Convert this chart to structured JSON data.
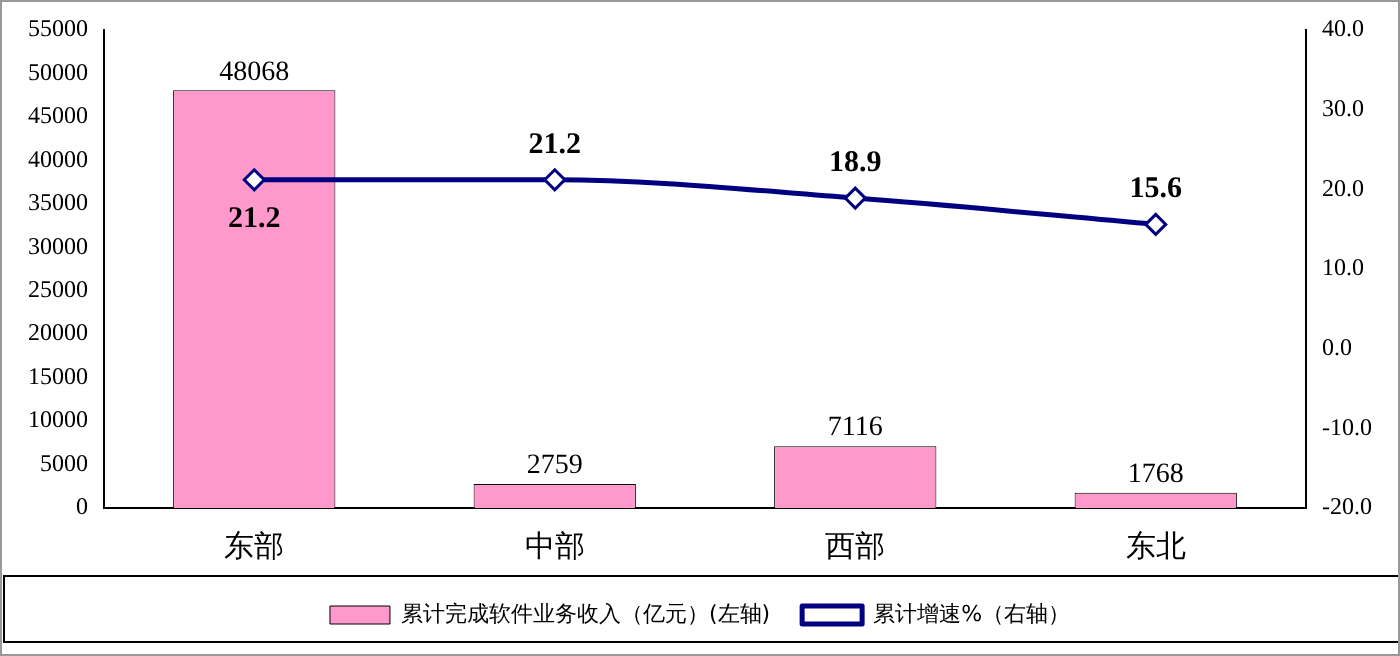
{
  "chart_data": {
    "type": "bar",
    "categories": [
      "东部",
      "中部",
      "西部",
      "东北"
    ],
    "series": [
      {
        "name": "累计完成软件业务收入（亿元）(左轴)",
        "color": "#ff99cc",
        "values": [
          48068,
          2759,
          7116,
          1768
        ]
      },
      {
        "name": "累计增速%（右轴）",
        "type": "line",
        "axis": "y2",
        "color": "#000080",
        "values": [
          21.2,
          21.2,
          18.9,
          15.6
        ]
      }
    ],
    "ylim": [
      0,
      55000
    ],
    "yticks": [
      0,
      5000,
      10000,
      15000,
      20000,
      25000,
      30000,
      35000,
      40000,
      45000,
      50000,
      55000
    ],
    "y2lim": [
      -20,
      40
    ],
    "y2ticks": [
      {
        "value": -20,
        "label": "-20.0"
      },
      {
        "value": -10,
        "label": "-10.0"
      },
      {
        "value": 0,
        "label": "0.0"
      },
      {
        "value": 10,
        "label": "10.0"
      },
      {
        "value": 20,
        "label": "20.0"
      },
      {
        "value": 30,
        "label": "30.0"
      },
      {
        "value": 40,
        "label": "40.0"
      }
    ],
    "data_labels": true,
    "grid": false,
    "legend": "bottom",
    "marker": "diamond",
    "line_style": "solid"
  }
}
